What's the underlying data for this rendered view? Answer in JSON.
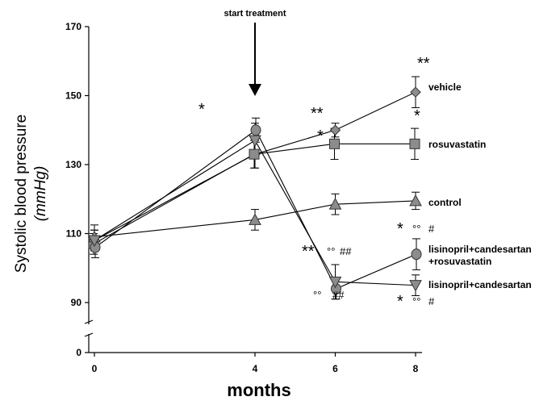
{
  "chart_data": {
    "type": "line",
    "xlabel": "months",
    "ylabel": "Systolic blood pressure",
    "ylabel_unit": "(mmHg)",
    "x": [
      0,
      4,
      6,
      8
    ],
    "x_ticks": [
      "0",
      "4",
      "6",
      "8"
    ],
    "y_ticks": [
      "0",
      "90",
      "110",
      "130",
      "150",
      "170"
    ],
    "ylim": [
      90,
      170
    ],
    "axis_break": true,
    "grid": false,
    "annotation": "start treatment",
    "series": [
      {
        "name": "vehicle",
        "marker": "diamond",
        "values": [
          108,
          133,
          140,
          151
        ],
        "errors": [
          3,
          4,
          2,
          4.5
        ]
      },
      {
        "name": "rosuvastatin",
        "marker": "square",
        "values": [
          107,
          133,
          136,
          136
        ],
        "errors": [
          3,
          4,
          4.5,
          4.5
        ]
      },
      {
        "name": "control",
        "marker": "triangle-up",
        "values": [
          109,
          114,
          118.5,
          119.5
        ],
        "errors": [
          3.5,
          3,
          3,
          2.5
        ]
      },
      {
        "name": "lisinopril+candesartan\n+rosuvastatin",
        "marker": "circle",
        "values": [
          106,
          140,
          94,
          104
        ],
        "errors": [
          3,
          3.5,
          3,
          4.5
        ]
      },
      {
        "name": "lisinopril+candesartan",
        "marker": "triangle-down",
        "values": [
          108,
          137,
          96,
          95
        ],
        "errors": [
          3,
          5,
          5,
          3
        ]
      }
    ],
    "significance": [
      {
        "x": 4,
        "text": "*"
      },
      {
        "x": 6,
        "text": "**"
      },
      {
        "x": 6,
        "text": "*"
      },
      {
        "x": 8,
        "text": "**"
      },
      {
        "x": 8,
        "text": "*"
      },
      {
        "x": 6,
        "text": "**"
      },
      {
        "x": 6,
        "text": "°°"
      },
      {
        "x": 6,
        "text": "##"
      },
      {
        "x": 6,
        "text": "°°"
      },
      {
        "x": 6,
        "text": "##"
      },
      {
        "x": 8,
        "text": "*"
      },
      {
        "x": 8,
        "text": "°°"
      },
      {
        "x": 8,
        "text": "#"
      },
      {
        "x": 8,
        "text": "*"
      },
      {
        "x": 8,
        "text": "°°"
      },
      {
        "x": 8,
        "text": "#"
      }
    ]
  }
}
